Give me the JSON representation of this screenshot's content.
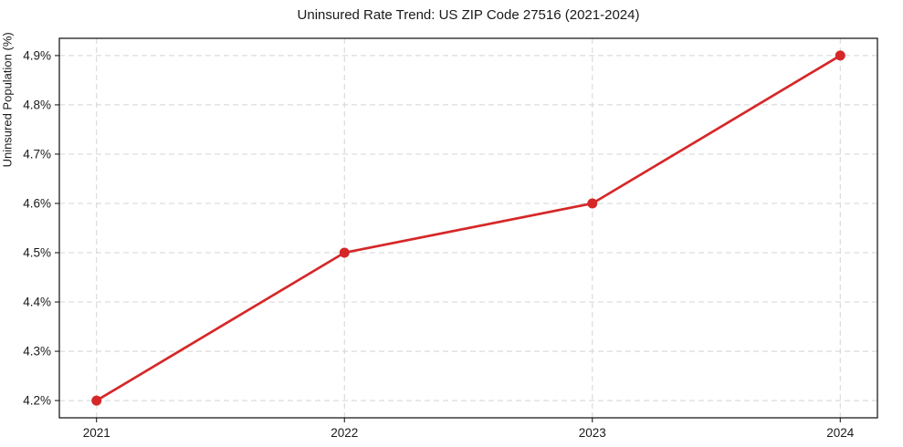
{
  "chart_data": {
    "type": "line",
    "title": "Uninsured Rate Trend: US ZIP Code 27516 (2021-2024)",
    "xlabel": "",
    "ylabel": "Uninsured Population (%)",
    "x": [
      2021,
      2022,
      2023,
      2024
    ],
    "values": [
      4.2,
      4.5,
      4.6,
      4.9
    ],
    "xlim": [
      2020.85,
      2024.15
    ],
    "ylim": [
      4.165,
      4.935
    ],
    "xticks": {
      "values": [
        2021,
        2022,
        2023,
        2024
      ],
      "labels": [
        "2021",
        "2022",
        "2023",
        "2024"
      ]
    },
    "yticks": {
      "values": [
        4.2,
        4.3,
        4.4,
        4.5,
        4.6,
        4.7,
        4.8,
        4.9
      ],
      "labels": [
        "4.2%",
        "4.3%",
        "4.4%",
        "4.5%",
        "4.6%",
        "4.7%",
        "4.8%",
        "4.9%"
      ]
    },
    "grid": true,
    "grid_style": "dashed",
    "legend": false,
    "colors": {
      "line": "#d62728",
      "marker": "#d62728",
      "grid": "#d4d4d4",
      "spine": "#0a0a0a",
      "text": "#1a1a1a",
      "background": "#ffffff"
    }
  }
}
